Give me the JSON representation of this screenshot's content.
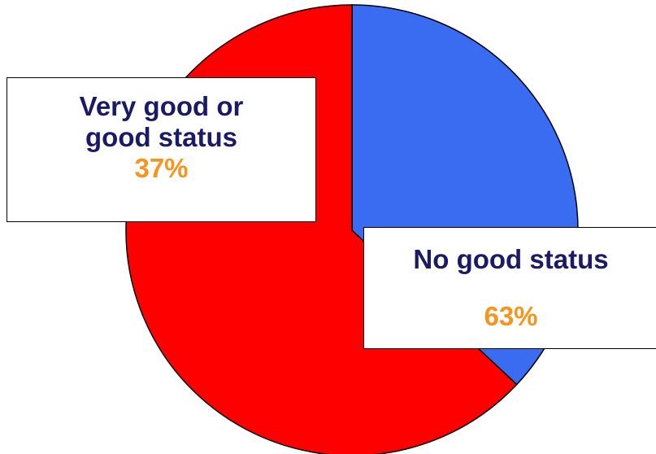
{
  "chart_data": {
    "type": "pie",
    "title": "",
    "slices": [
      {
        "name": "Very good or good status",
        "label": "Very good or\ngood status",
        "value": 37,
        "percent_label": "37%",
        "color": "#3a6cf2"
      },
      {
        "name": "No good status",
        "label": "No good status",
        "value": 63,
        "percent_label": "63%",
        "color": "#ff0000"
      }
    ],
    "start_angle_deg": 0,
    "direction": "clockwise",
    "stroke_color": "#000000",
    "label_color": "#1a1a66",
    "percent_color": "#f7941d"
  }
}
